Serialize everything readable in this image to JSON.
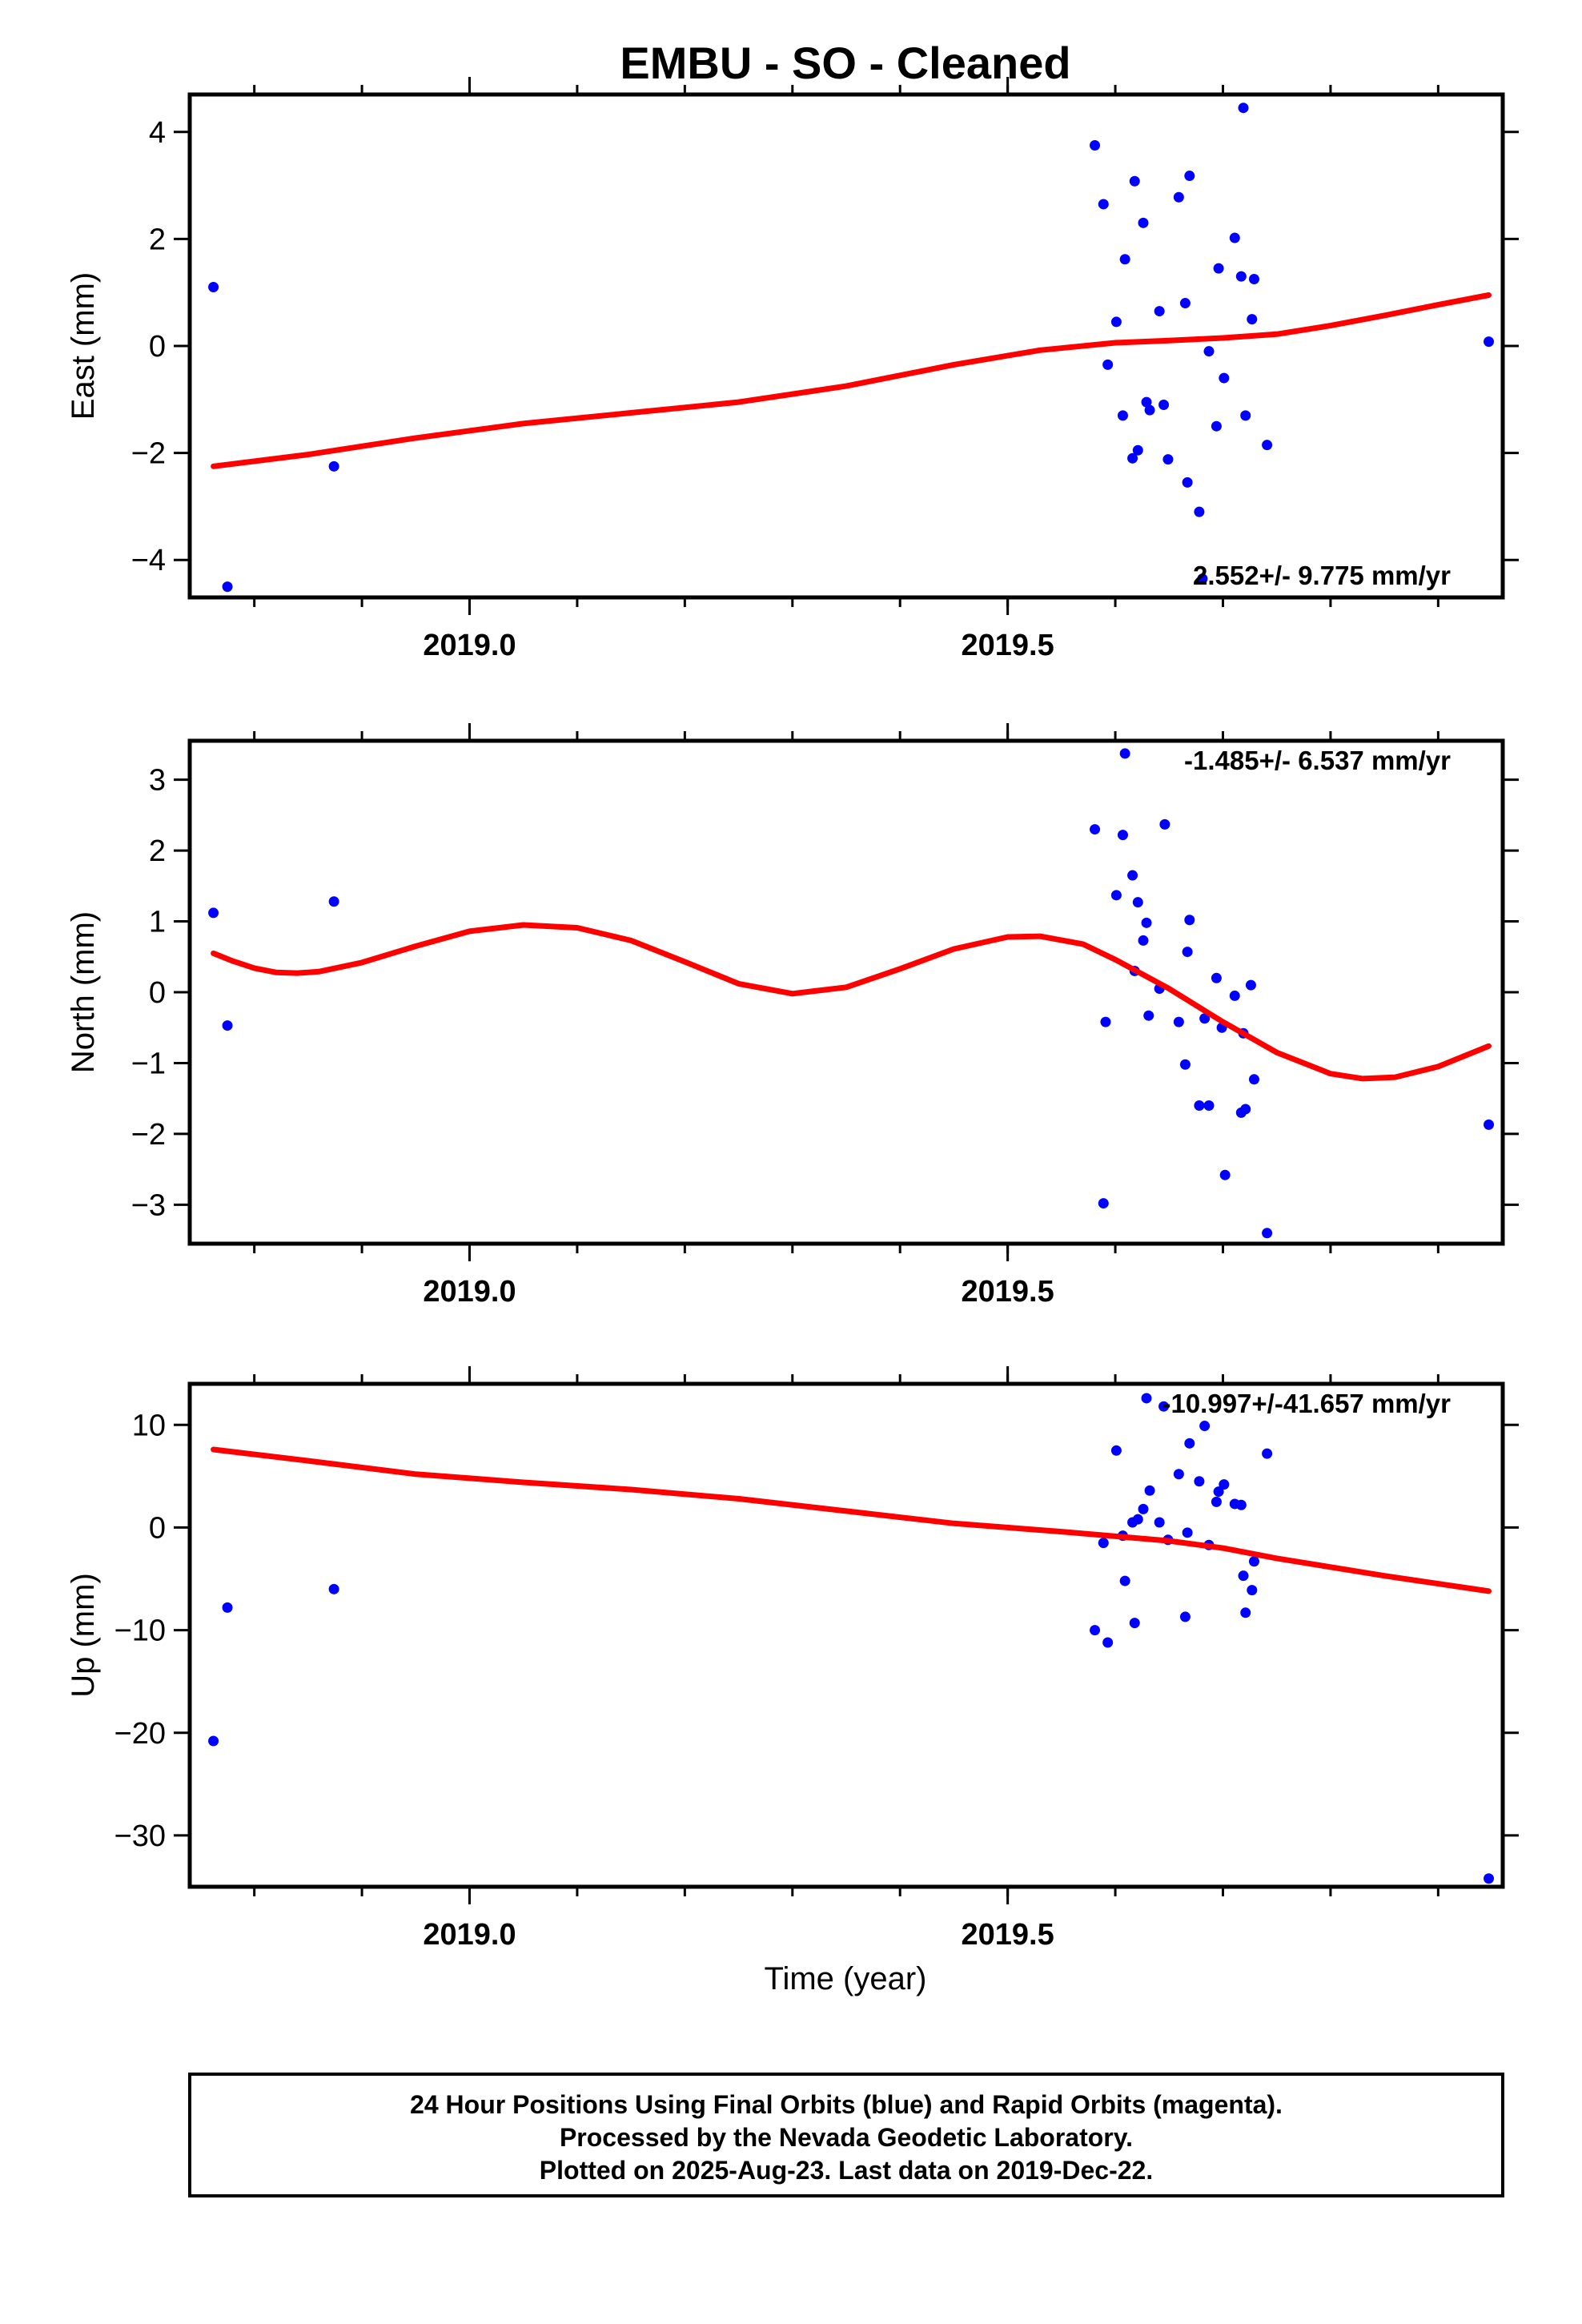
{
  "title": "EMBU  - SO - Cleaned",
  "x_axis": {
    "label": "Time (year)",
    "range": [
      2018.74,
      2019.96
    ],
    "ticks": [
      2019.0,
      2019.5
    ],
    "tick_labels": [
      "2019.0",
      "2019.5"
    ]
  },
  "colors": {
    "final_orbits": "#0000ff",
    "model_fit": "#ff0000"
  },
  "chart_data": [
    {
      "type": "scatter",
      "name": "east",
      "ylabel": "East (mm)",
      "ylim": [
        -4.7,
        4.7
      ],
      "yticks": [
        -4,
        -2,
        0,
        2,
        4
      ],
      "ytick_labels": [
        "−4",
        "−2",
        "0",
        "2",
        "4"
      ],
      "rate_text": "2.552+/- 9.775 mm/yr",
      "rate_position": "bottom-right",
      "points": [
        [
          2018.762,
          1.1
        ],
        [
          2018.775,
          -4.5
        ],
        [
          2018.874,
          -2.25
        ],
        [
          2019.581,
          3.75
        ],
        [
          2019.589,
          2.65
        ],
        [
          2019.593,
          -0.35
        ],
        [
          2019.601,
          0.45
        ],
        [
          2019.607,
          -1.3
        ],
        [
          2019.609,
          1.62
        ],
        [
          2019.616,
          -2.1
        ],
        [
          2019.618,
          3.08
        ],
        [
          2019.621,
          -1.95
        ],
        [
          2019.626,
          2.3
        ],
        [
          2019.629,
          -1.05
        ],
        [
          2019.632,
          -1.2
        ],
        [
          2019.641,
          0.65
        ],
        [
          2019.645,
          -1.1
        ],
        [
          2019.649,
          -2.12
        ],
        [
          2019.659,
          2.78
        ],
        [
          2019.665,
          0.8
        ],
        [
          2019.669,
          3.18
        ],
        [
          2019.667,
          -2.55
        ],
        [
          2019.678,
          -3.1
        ],
        [
          2019.681,
          -4.35
        ],
        [
          2019.687,
          -0.1
        ],
        [
          2019.694,
          -1.5
        ],
        [
          2019.696,
          1.45
        ],
        [
          2019.701,
          -0.6
        ],
        [
          2019.711,
          2.02
        ],
        [
          2019.717,
          1.3
        ],
        [
          2019.719,
          4.45
        ],
        [
          2019.721,
          -1.3
        ],
        [
          2019.727,
          0.5
        ],
        [
          2019.729,
          1.25
        ],
        [
          2019.741,
          -1.85
        ],
        [
          2019.947,
          0.08
        ]
      ],
      "fit": [
        [
          2018.762,
          -2.25
        ],
        [
          2018.85,
          -2.03
        ],
        [
          2018.95,
          -1.72
        ],
        [
          2019.05,
          -1.45
        ],
        [
          2019.15,
          -1.25
        ],
        [
          2019.25,
          -1.05
        ],
        [
          2019.35,
          -0.75
        ],
        [
          2019.45,
          -0.35
        ],
        [
          2019.53,
          -0.08
        ],
        [
          2019.6,
          0.06
        ],
        [
          2019.65,
          0.1
        ],
        [
          2019.7,
          0.15
        ],
        [
          2019.75,
          0.22
        ],
        [
          2019.8,
          0.38
        ],
        [
          2019.85,
          0.57
        ],
        [
          2019.9,
          0.77
        ],
        [
          2019.947,
          0.95
        ]
      ]
    },
    {
      "type": "scatter",
      "name": "north",
      "ylabel": "North (mm)",
      "ylim": [
        -3.55,
        3.55
      ],
      "yticks": [
        -3,
        -2,
        -1,
        0,
        1,
        2,
        3
      ],
      "ytick_labels": [
        "−3",
        "−2",
        "−1",
        "0",
        "1",
        "2",
        "3"
      ],
      "rate_text": "-1.485+/- 6.537 mm/yr",
      "rate_position": "top-right",
      "points": [
        [
          2018.762,
          1.12
        ],
        [
          2018.775,
          -0.47
        ],
        [
          2018.874,
          1.28
        ],
        [
          2019.581,
          2.3
        ],
        [
          2019.589,
          -2.98
        ],
        [
          2019.591,
          -0.42
        ],
        [
          2019.601,
          1.37
        ],
        [
          2019.607,
          2.22
        ],
        [
          2019.609,
          3.37
        ],
        [
          2019.616,
          1.65
        ],
        [
          2019.618,
          0.3
        ],
        [
          2019.621,
          1.27
        ],
        [
          2019.626,
          0.73
        ],
        [
          2019.629,
          0.98
        ],
        [
          2019.631,
          -0.33
        ],
        [
          2019.641,
          0.05
        ],
        [
          2019.646,
          2.37
        ],
        [
          2019.659,
          -0.42
        ],
        [
          2019.665,
          -1.02
        ],
        [
          2019.667,
          0.57
        ],
        [
          2019.669,
          1.02
        ],
        [
          2019.678,
          -1.6
        ],
        [
          2019.683,
          -0.37
        ],
        [
          2019.687,
          -1.6
        ],
        [
          2019.694,
          0.2
        ],
        [
          2019.699,
          -0.5
        ],
        [
          2019.702,
          -2.58
        ],
        [
          2019.711,
          -0.05
        ],
        [
          2019.717,
          -1.7
        ],
        [
          2019.719,
          -0.58
        ],
        [
          2019.721,
          -1.65
        ],
        [
          2019.726,
          0.1
        ],
        [
          2019.729,
          -1.23
        ],
        [
          2019.741,
          -3.4
        ],
        [
          2019.947,
          -1.87
        ]
      ],
      "fit": [
        [
          2018.762,
          0.55
        ],
        [
          2018.78,
          0.44
        ],
        [
          2018.8,
          0.34
        ],
        [
          2018.82,
          0.28
        ],
        [
          2018.84,
          0.27
        ],
        [
          2018.86,
          0.29
        ],
        [
          2018.9,
          0.42
        ],
        [
          2018.95,
          0.65
        ],
        [
          2019.0,
          0.86
        ],
        [
          2019.05,
          0.95
        ],
        [
          2019.1,
          0.91
        ],
        [
          2019.15,
          0.73
        ],
        [
          2019.2,
          0.43
        ],
        [
          2019.25,
          0.12
        ],
        [
          2019.3,
          -0.02
        ],
        [
          2019.35,
          0.07
        ],
        [
          2019.4,
          0.33
        ],
        [
          2019.45,
          0.61
        ],
        [
          2019.5,
          0.78
        ],
        [
          2019.53,
          0.79
        ],
        [
          2019.57,
          0.68
        ],
        [
          2019.6,
          0.46
        ],
        [
          2019.65,
          0.05
        ],
        [
          2019.7,
          -0.42
        ],
        [
          2019.75,
          -0.85
        ],
        [
          2019.8,
          -1.15
        ],
        [
          2019.83,
          -1.22
        ],
        [
          2019.86,
          -1.2
        ],
        [
          2019.9,
          -1.05
        ],
        [
          2019.947,
          -0.76
        ]
      ]
    },
    {
      "type": "scatter",
      "name": "up",
      "ylabel": "Up (mm)",
      "ylim": [
        -35,
        14
      ],
      "yticks": [
        -30,
        -20,
        -10,
        0,
        10
      ],
      "ytick_labels": [
        "−30",
        "−20",
        "−10",
        "0",
        "10"
      ],
      "rate_text": "-10.997+/-41.657 mm/yr",
      "rate_position": "top-right",
      "points": [
        [
          2018.762,
          -20.8
        ],
        [
          2018.775,
          -7.8
        ],
        [
          2018.874,
          -6.0
        ],
        [
          2019.581,
          -10.0
        ],
        [
          2019.589,
          -1.5
        ],
        [
          2019.593,
          -11.2
        ],
        [
          2019.601,
          7.5
        ],
        [
          2019.607,
          -0.8
        ],
        [
          2019.609,
          -5.2
        ],
        [
          2019.616,
          0.5
        ],
        [
          2019.618,
          -9.3
        ],
        [
          2019.621,
          0.8
        ],
        [
          2019.626,
          1.8
        ],
        [
          2019.629,
          12.6
        ],
        [
          2019.632,
          3.6
        ],
        [
          2019.641,
          0.5
        ],
        [
          2019.645,
          11.8
        ],
        [
          2019.649,
          -1.2
        ],
        [
          2019.659,
          5.2
        ],
        [
          2019.665,
          -8.7
        ],
        [
          2019.667,
          -0.5
        ],
        [
          2019.669,
          8.2
        ],
        [
          2019.678,
          4.5
        ],
        [
          2019.683,
          9.9
        ],
        [
          2019.687,
          -1.7
        ],
        [
          2019.694,
          2.5
        ],
        [
          2019.696,
          3.5
        ],
        [
          2019.701,
          4.2
        ],
        [
          2019.711,
          2.3
        ],
        [
          2019.717,
          2.2
        ],
        [
          2019.719,
          -4.7
        ],
        [
          2019.721,
          -8.3
        ],
        [
          2019.727,
          -6.1
        ],
        [
          2019.729,
          -3.3
        ],
        [
          2019.741,
          7.2
        ],
        [
          2019.947,
          -34.2
        ]
      ],
      "fit": [
        [
          2018.762,
          7.6
        ],
        [
          2018.85,
          6.5
        ],
        [
          2018.95,
          5.2
        ],
        [
          2019.05,
          4.4
        ],
        [
          2019.15,
          3.7
        ],
        [
          2019.25,
          2.8
        ],
        [
          2019.35,
          1.6
        ],
        [
          2019.45,
          0.4
        ],
        [
          2019.55,
          -0.4
        ],
        [
          2019.65,
          -1.3
        ],
        [
          2019.7,
          -2.0
        ],
        [
          2019.75,
          -3.0
        ],
        [
          2019.85,
          -4.7
        ],
        [
          2019.947,
          -6.2
        ]
      ]
    }
  ],
  "footer": {
    "lines": [
      "24 Hour Positions Using Final Orbits (blue) and Rapid Orbits (magenta).",
      "Processed by the Nevada Geodetic Laboratory.",
      "Plotted on 2025-Aug-23. Last data on 2019-Dec-22."
    ]
  }
}
